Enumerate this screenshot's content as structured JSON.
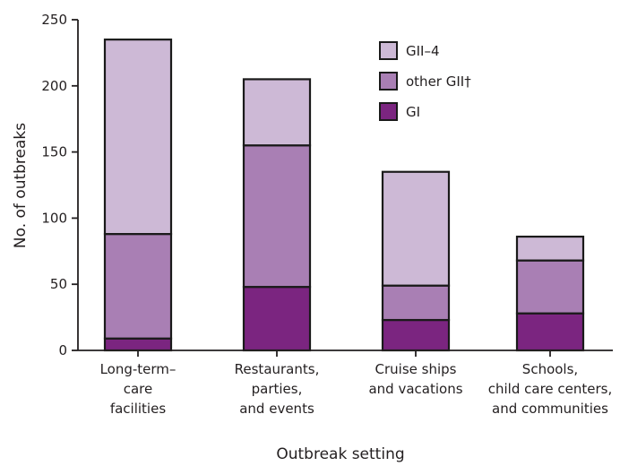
{
  "chart_data": {
    "type": "bar",
    "stacked": true,
    "categories": [
      [
        "Long-term–",
        "care",
        "facilities"
      ],
      [
        "Restaurants,",
        "parties,",
        "and events"
      ],
      [
        "Cruise ships",
        "and vacations"
      ],
      [
        "Schools,",
        "child care centers,",
        "and communities"
      ]
    ],
    "series": [
      {
        "name": "GI",
        "color": "#7b2580",
        "values": [
          9,
          48,
          23,
          28
        ]
      },
      {
        "name": "other GII†",
        "color": "#a97fb4",
        "values": [
          79,
          107,
          26,
          40
        ]
      },
      {
        "name": "GII–4",
        "color": "#cdb9d6",
        "values": [
          147,
          50,
          86,
          18
        ]
      }
    ],
    "legend_order": [
      "GII–4",
      "other GII†",
      "GI"
    ],
    "legend_position": "top-right",
    "xlabel": "Outbreak setting",
    "ylabel": "No. of outbreaks",
    "ylim": [
      0,
      250
    ],
    "yticks": [
      0,
      50,
      100,
      150,
      200,
      250
    ],
    "grid": false
  }
}
